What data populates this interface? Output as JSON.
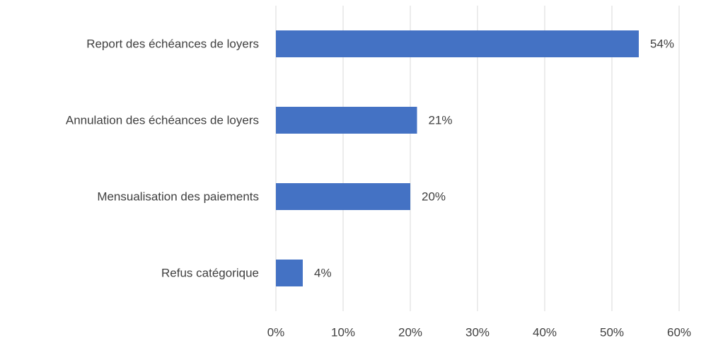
{
  "chart_data": {
    "type": "bar",
    "orientation": "horizontal",
    "categories": [
      "Report des échéances de loyers",
      "Annulation des échéances de loyers",
      "Mensualisation des paiements",
      "Refus catégorique"
    ],
    "values": [
      54,
      21,
      20,
      4
    ],
    "value_labels": [
      "54%",
      "21%",
      "20%",
      "4%"
    ],
    "color": "#4472c4",
    "xlim": [
      0,
      60
    ],
    "xticks": [
      {
        "value": 0,
        "label": "0%"
      },
      {
        "value": 10,
        "label": "10%"
      },
      {
        "value": 20,
        "label": "20%"
      },
      {
        "value": 30,
        "label": "30%"
      },
      {
        "value": 40,
        "label": "40%"
      },
      {
        "value": 50,
        "label": "50%"
      },
      {
        "value": 60,
        "label": "60%"
      }
    ],
    "grid": true
  }
}
